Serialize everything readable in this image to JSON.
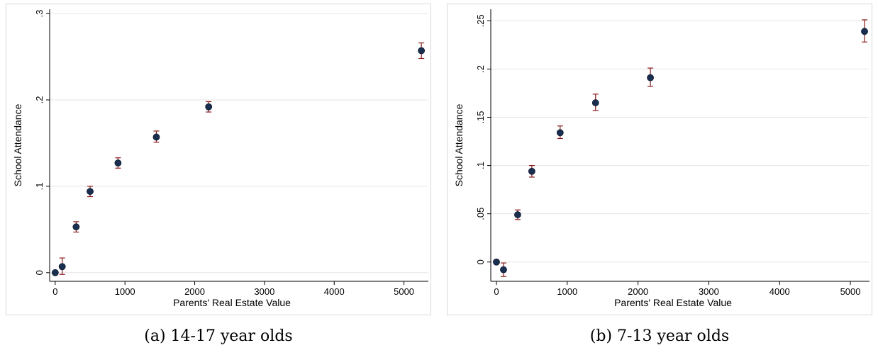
{
  "chart_data": [
    {
      "type": "scatter",
      "caption": "(a) 14-17 year olds",
      "xlabel": "Parents' Real Estate Value",
      "ylabel": "School Attendance",
      "xlim": [
        -80,
        5350
      ],
      "ylim": [
        -0.01,
        0.305
      ],
      "xticks": [
        0,
        1000,
        2000,
        3000,
        4000,
        5000
      ],
      "xtick_labels": [
        "0",
        "1000",
        "2000",
        "3000",
        "4000",
        "5000"
      ],
      "yticks": [
        0,
        0.1,
        0.2,
        0.3
      ],
      "ytick_labels": [
        "0",
        ".1",
        ".2",
        ".3"
      ],
      "grid": true,
      "error_bars": true,
      "colors": {
        "point": "#1a2e50",
        "errorbar": "#8b1a1a",
        "grid": "#e6e6e6"
      },
      "points": [
        {
          "x": 0,
          "y": 0.0,
          "lo": 0.0,
          "hi": 0.0
        },
        {
          "x": 100,
          "y": 0.007,
          "lo": -0.002,
          "hi": 0.017
        },
        {
          "x": 300,
          "y": 0.053,
          "lo": 0.047,
          "hi": 0.059
        },
        {
          "x": 500,
          "y": 0.094,
          "lo": 0.088,
          "hi": 0.1
        },
        {
          "x": 900,
          "y": 0.127,
          "lo": 0.121,
          "hi": 0.133
        },
        {
          "x": 1450,
          "y": 0.157,
          "lo": 0.151,
          "hi": 0.164
        },
        {
          "x": 2200,
          "y": 0.192,
          "lo": 0.186,
          "hi": 0.198
        },
        {
          "x": 5250,
          "y": 0.257,
          "lo": 0.248,
          "hi": 0.266
        }
      ]
    },
    {
      "type": "scatter",
      "caption": "(b) 7-13 year olds",
      "xlabel": "Parents' Real Estate Value",
      "ylabel": "School Attendance",
      "xlim": [
        -80,
        5270
      ],
      "ylim": [
        -0.02,
        0.262
      ],
      "xticks": [
        0,
        1000,
        2000,
        3000,
        4000,
        5000
      ],
      "xtick_labels": [
        "0",
        "1000",
        "2000",
        "3000",
        "4000",
        "5000"
      ],
      "yticks": [
        0,
        0.05,
        0.1,
        0.15,
        0.2,
        0.25
      ],
      "ytick_labels": [
        "0",
        ".05",
        ".1",
        ".15",
        ".2",
        ".25"
      ],
      "grid": true,
      "error_bars": true,
      "colors": {
        "point": "#1a2e50",
        "errorbar": "#8b1a1a",
        "grid": "#e6e6e6"
      },
      "points": [
        {
          "x": 0,
          "y": 0.0,
          "lo": 0.0,
          "hi": 0.0
        },
        {
          "x": 100,
          "y": -0.008,
          "lo": -0.015,
          "hi": -0.001
        },
        {
          "x": 300,
          "y": 0.049,
          "lo": 0.044,
          "hi": 0.054
        },
        {
          "x": 500,
          "y": 0.094,
          "lo": 0.088,
          "hi": 0.1
        },
        {
          "x": 900,
          "y": 0.134,
          "lo": 0.128,
          "hi": 0.141
        },
        {
          "x": 1400,
          "y": 0.165,
          "lo": 0.157,
          "hi": 0.174
        },
        {
          "x": 2175,
          "y": 0.191,
          "lo": 0.182,
          "hi": 0.201
        },
        {
          "x": 5200,
          "y": 0.239,
          "lo": 0.228,
          "hi": 0.251
        }
      ]
    }
  ]
}
